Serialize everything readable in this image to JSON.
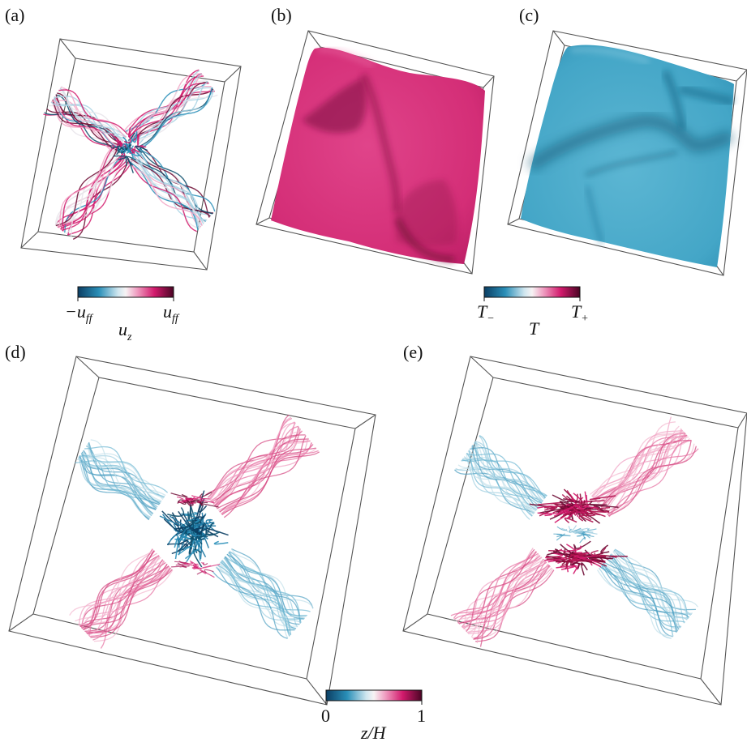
{
  "panels": {
    "a": {
      "label": "(a)"
    },
    "b": {
      "label": "(b)"
    },
    "c": {
      "label": "(c)"
    },
    "d": {
      "label": "(d)"
    },
    "e": {
      "label": "(e)"
    }
  },
  "colorbars": {
    "uz": {
      "min_label": "−u",
      "min_sub": "ff",
      "max_label": "u",
      "max_sub": "ff",
      "title": "u",
      "title_sub": "z"
    },
    "T": {
      "min_label": "T",
      "min_sub": "−",
      "max_label": "T",
      "max_sub": "+",
      "title": "T"
    },
    "zH": {
      "min_label": "0",
      "max_label": "1",
      "title": "z/H"
    }
  },
  "colors": {
    "cold": "#2a8fb8",
    "neutral": "#f4f0f0",
    "hot": "#d21a6c",
    "dark_hot": "#6d0a33",
    "dark_cold": "#0b4e6b",
    "surface_hot": "#d8347a",
    "surface_cold": "#48a9c9"
  }
}
